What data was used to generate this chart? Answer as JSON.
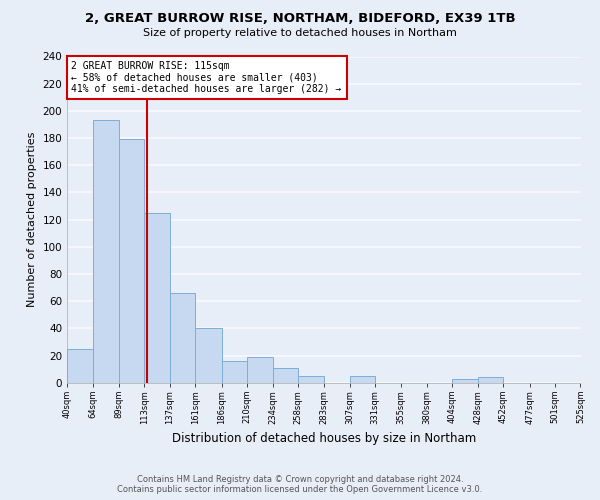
{
  "title": "2, GREAT BURROW RISE, NORTHAM, BIDEFORD, EX39 1TB",
  "subtitle": "Size of property relative to detached houses in Northam",
  "xlabel": "Distribution of detached houses by size in Northam",
  "ylabel": "Number of detached properties",
  "bar_edges": [
    40,
    64,
    89,
    113,
    137,
    161,
    186,
    210,
    234,
    258,
    283,
    307,
    331,
    355,
    380,
    404,
    428,
    452,
    477,
    501,
    525
  ],
  "bar_heights": [
    25,
    193,
    179,
    125,
    66,
    40,
    16,
    19,
    11,
    5,
    0,
    5,
    0,
    0,
    0,
    3,
    4,
    0,
    0,
    0
  ],
  "bar_color": "#c6d9f0",
  "bar_edgecolor": "#7bafd4",
  "property_line_x": 115,
  "property_line_color": "#cc0000",
  "ylim": [
    0,
    240
  ],
  "yticks": [
    0,
    20,
    40,
    60,
    80,
    100,
    120,
    140,
    160,
    180,
    200,
    220,
    240
  ],
  "annotation_title": "2 GREAT BURROW RISE: 115sqm",
  "annotation_line1": "← 58% of detached houses are smaller (403)",
  "annotation_line2": "41% of semi-detached houses are larger (282) →",
  "annotation_box_color": "white",
  "annotation_box_edgecolor": "#cc0000",
  "footer_line1": "Contains HM Land Registry data © Crown copyright and database right 2024.",
  "footer_line2": "Contains public sector information licensed under the Open Government Licence v3.0.",
  "background_color": "#e8eef8",
  "grid_color": "#f8faff",
  "tick_labels": [
    "40sqm",
    "64sqm",
    "89sqm",
    "113sqm",
    "137sqm",
    "161sqm",
    "186sqm",
    "210sqm",
    "234sqm",
    "258sqm",
    "283sqm",
    "307sqm",
    "331sqm",
    "355sqm",
    "380sqm",
    "404sqm",
    "428sqm",
    "452sqm",
    "477sqm",
    "501sqm",
    "525sqm"
  ]
}
